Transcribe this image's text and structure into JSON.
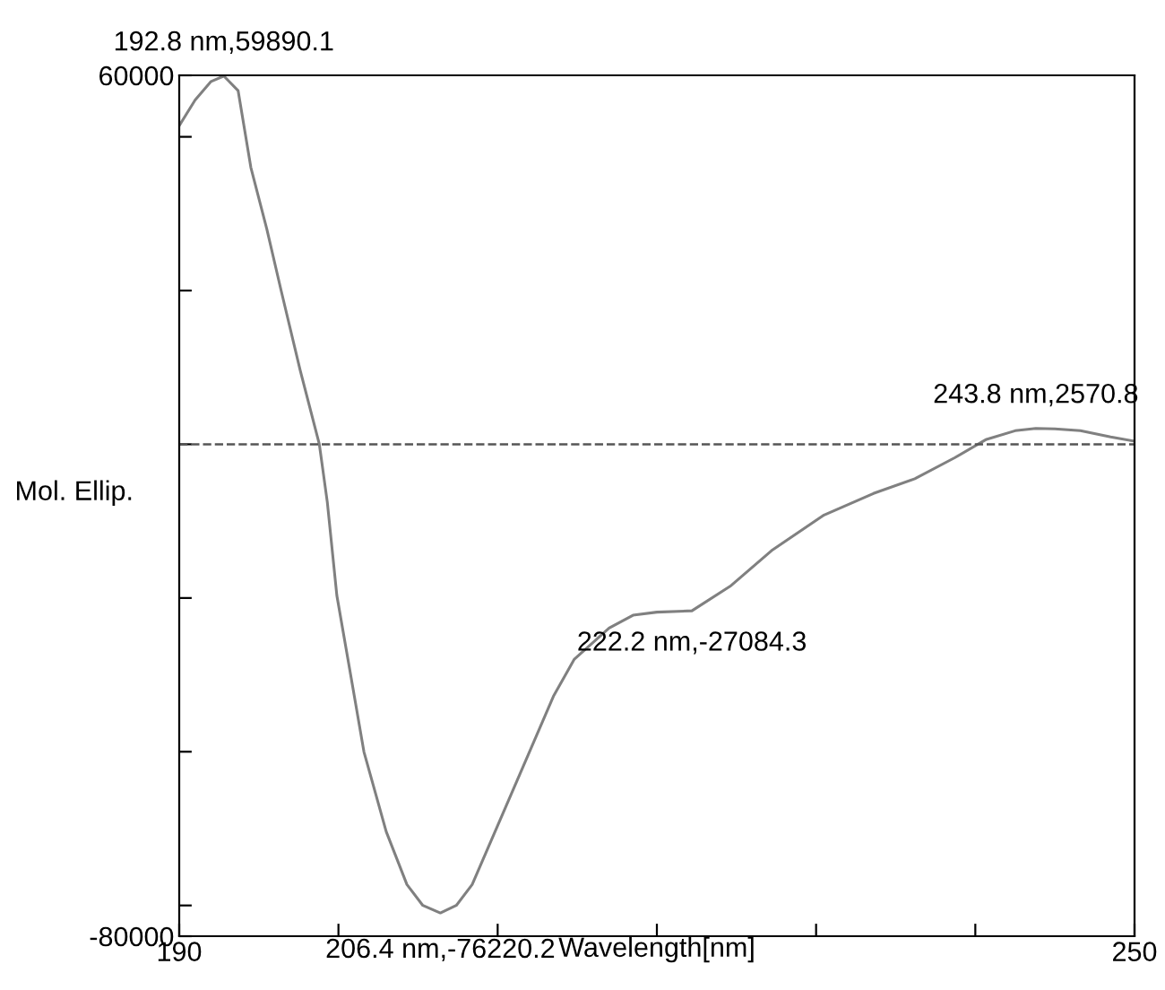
{
  "chart_data": {
    "type": "line",
    "xlabel": "Wavelength[nm]",
    "ylabel": "Mol. Ellip.",
    "x": [
      190,
      191,
      192,
      192.8,
      193.7,
      194.5,
      195.5,
      196.4,
      197.6,
      198.8,
      199.3,
      199.9,
      200.8,
      201.6,
      203,
      204.3,
      205.3,
      206.4,
      207.4,
      208.4,
      210,
      212,
      213.5,
      214.8,
      217,
      218.5,
      220,
      222.2,
      224.6,
      227.2,
      230.5,
      233.6,
      236.2,
      238.7,
      240.7,
      242.5,
      243.8,
      245,
      246.6,
      248.5,
      250
    ],
    "values": [
      51800,
      56000,
      59000,
      59890,
      57500,
      45000,
      35000,
      25000,
      12000,
      0,
      -9400,
      -24600,
      -38000,
      -50000,
      -63000,
      -71600,
      -75000,
      -76220,
      -75000,
      -71600,
      -62000,
      -50000,
      -41000,
      -35000,
      -29900,
      -27800,
      -27300,
      -27084,
      -23100,
      -17300,
      -11500,
      -8000,
      -5600,
      -2200,
      800,
      2200,
      2570.8,
      2500,
      2200,
      1200,
      500
    ],
    "color": "#808080",
    "xlim": [
      190,
      250
    ],
    "ylim": [
      -80000,
      60000
    ],
    "xticks": [
      190,
      {
        "value": 200,
        "label": null
      },
      {
        "value": 210,
        "label": null
      },
      {
        "value": 220,
        "label": null
      },
      {
        "value": 230,
        "label": null
      },
      {
        "value": 240,
        "label": null
      },
      250
    ],
    "yticks": [
      -80000,
      {
        "value": -75000,
        "label": null
      },
      {
        "value": -50000,
        "label": null
      },
      {
        "value": -25000,
        "label": null
      },
      {
        "value": 0,
        "label": null
      },
      {
        "value": 25000,
        "label": null
      },
      {
        "value": 50000,
        "label": null
      },
      60000
    ],
    "ref_lines": [
      {
        "axis": "y",
        "value": 0,
        "line_style": "dashed",
        "color": "#555555"
      }
    ],
    "annotations": [
      {
        "text": "192.8 nm,59890.1",
        "x": 192.8,
        "y": 59890.1
      },
      {
        "text": "206.4 nm,-76220.2",
        "x": 206.4,
        "y": -76220.2
      },
      {
        "text": "222.2 nm,-27084.3",
        "x": 222.2,
        "y": -27084.3
      },
      {
        "text": "243.8 nm,2570.8",
        "x": 243.8,
        "y": 2570.8
      }
    ],
    "grid": false,
    "legend": false,
    "marker": "none",
    "line_style": "solid"
  }
}
